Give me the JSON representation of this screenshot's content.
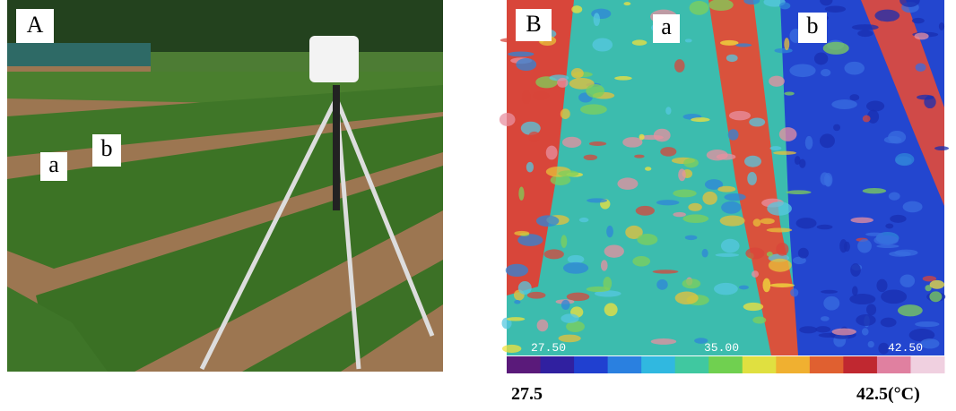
{
  "panels": [
    {
      "label": "A",
      "row_labels": [
        "a",
        "b"
      ]
    },
    {
      "label": "B",
      "row_labels": [
        "a",
        "b"
      ],
      "scale_marks": [
        "27.50",
        "35.00",
        "42.50"
      ]
    }
  ],
  "scale": {
    "min_label": "27.5",
    "max_label": "42.5(°C)"
  }
}
